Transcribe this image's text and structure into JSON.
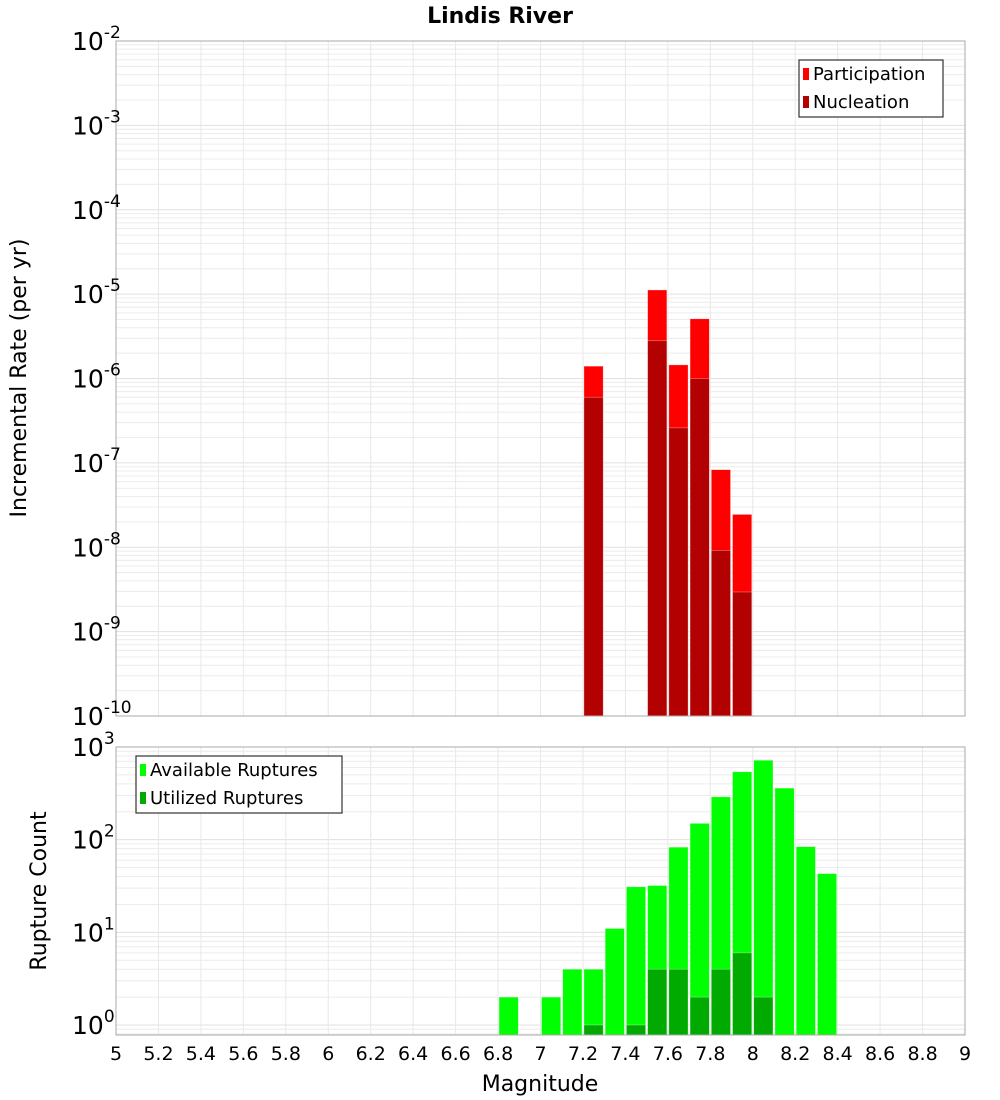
{
  "chart_data": [
    {
      "type": "bar",
      "title": "Lindis River",
      "xlabel": "Magnitude",
      "ylabel": "Incremental Rate (per yr)",
      "yscale": "log",
      "xlim": [
        5,
        9
      ],
      "ylim": [
        1e-10,
        0.01
      ],
      "x_ticks": [
        "5",
        "5.2",
        "5.4",
        "5.6",
        "5.8",
        "6",
        "6.2",
        "6.4",
        "6.6",
        "6.8",
        "7",
        "7.2",
        "7.4",
        "7.6",
        "7.8",
        "8",
        "8.2",
        "8.4",
        "8.6",
        "8.8",
        "9"
      ],
      "y_tick_exponents": [
        "-10",
        "-9",
        "-8",
        "-7",
        "-6",
        "-5",
        "-4",
        "-3",
        "-2"
      ],
      "bin_width": 0.1,
      "legend_position": "top-right",
      "grid": true,
      "series": [
        {
          "name": "Participation",
          "color": "#ff0000",
          "x": [
            7.25,
            7.55,
            7.65,
            7.75,
            7.85,
            7.95
          ],
          "values": [
            1.4e-06,
            1.12e-05,
            1.45e-06,
            5.1e-06,
            8.3e-08,
            2.45e-08
          ]
        },
        {
          "name": "Nucleation",
          "color": "#b30000",
          "x": [
            7.25,
            7.55,
            7.65,
            7.75,
            7.85,
            7.95
          ],
          "values": [
            6e-07,
            2.8e-06,
            2.6e-07,
            1e-06,
            9.2e-09,
            2.95e-09
          ]
        }
      ]
    },
    {
      "type": "bar",
      "xlabel": "Magnitude",
      "ylabel": "Rupture Count",
      "yscale": "log",
      "xlim": [
        5,
        9
      ],
      "ylim": [
        0.78,
        1000
      ],
      "y_tick_exponents": [
        "0",
        "1",
        "2",
        "3"
      ],
      "bin_width": 0.1,
      "legend_position": "top-left",
      "grid": true,
      "series": [
        {
          "name": "Available Ruptures",
          "color": "#00ff00",
          "x": [
            6.85,
            7.05,
            7.15,
            7.25,
            7.35,
            7.45,
            7.55,
            7.65,
            7.75,
            7.85,
            7.95,
            8.05,
            8.15,
            8.25,
            8.35
          ],
          "values": [
            2,
            2,
            4,
            4,
            11,
            31,
            32,
            83,
            150,
            290,
            540,
            720,
            360,
            84,
            43
          ]
        },
        {
          "name": "Utilized Ruptures",
          "color": "#00aa00",
          "x": [
            7.25,
            7.45,
            7.55,
            7.65,
            7.75,
            7.85,
            7.95,
            8.05
          ],
          "values": [
            1,
            1,
            4,
            4,
            2,
            4,
            6,
            2
          ]
        }
      ]
    }
  ]
}
